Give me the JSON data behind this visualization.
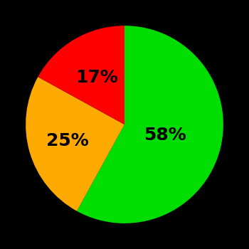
{
  "slices": [
    58,
    25,
    17
  ],
  "colors": [
    "#00dd00",
    "#ffaa00",
    "#ff0000"
  ],
  "labels": [
    "58%",
    "25%",
    "17%"
  ],
  "background_color": "#000000",
  "startangle": 90,
  "figsize": [
    3.5,
    3.5
  ],
  "dpi": 100,
  "text_fontsize": 18,
  "text_fontweight": "bold",
  "label_radii": [
    0.42,
    0.6,
    0.55
  ]
}
